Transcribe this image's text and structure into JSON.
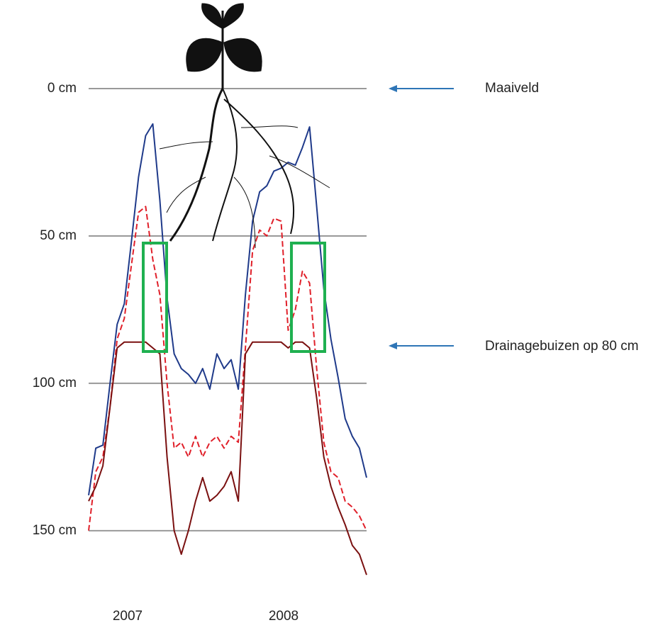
{
  "chart_data": {
    "type": "line",
    "ylim": [
      170,
      0
    ],
    "yticks": [
      {
        "value": 0,
        "label": "0 cm"
      },
      {
        "value": 50,
        "label": "50 cm"
      },
      {
        "value": 100,
        "label": "100 cm"
      },
      {
        "value": 150,
        "label": "150 cm"
      }
    ],
    "grid": true,
    "xlabels": [
      "2007",
      "2008"
    ],
    "annotations": [
      "Maaiveld",
      "Drainagebuizen op 80 cm"
    ],
    "series": [
      {
        "color": "#1f3a8a",
        "dash": false,
        "values": [
          138,
          122,
          121,
          100,
          80,
          73,
          52,
          30,
          16,
          12,
          38,
          71,
          90,
          95,
          97,
          100,
          95,
          102,
          90,
          95,
          92,
          102,
          70,
          45,
          35,
          33,
          28,
          27,
          25,
          26,
          20,
          13,
          40,
          68,
          85,
          98,
          112,
          118,
          122,
          132
        ]
      },
      {
        "color": "#e0202a",
        "dash": true,
        "values": [
          150,
          130,
          125,
          108,
          85,
          78,
          60,
          42,
          40,
          58,
          70,
          100,
          122,
          120,
          125,
          118,
          125,
          120,
          118,
          122,
          118,
          120,
          88,
          55,
          48,
          50,
          44,
          45,
          82,
          75,
          62,
          66,
          95,
          120,
          130,
          132,
          140,
          142,
          145,
          150
        ]
      },
      {
        "color": "#7a1010",
        "dash": false,
        "values": [
          140,
          135,
          128,
          108,
          88,
          86,
          86,
          86,
          86,
          88,
          90,
          125,
          150,
          158,
          150,
          140,
          132,
          140,
          138,
          135,
          130,
          140,
          90,
          86,
          86,
          86,
          86,
          86,
          88,
          86,
          86,
          88,
          105,
          125,
          135,
          142,
          148,
          155,
          158,
          165
        ]
      }
    ]
  }
}
